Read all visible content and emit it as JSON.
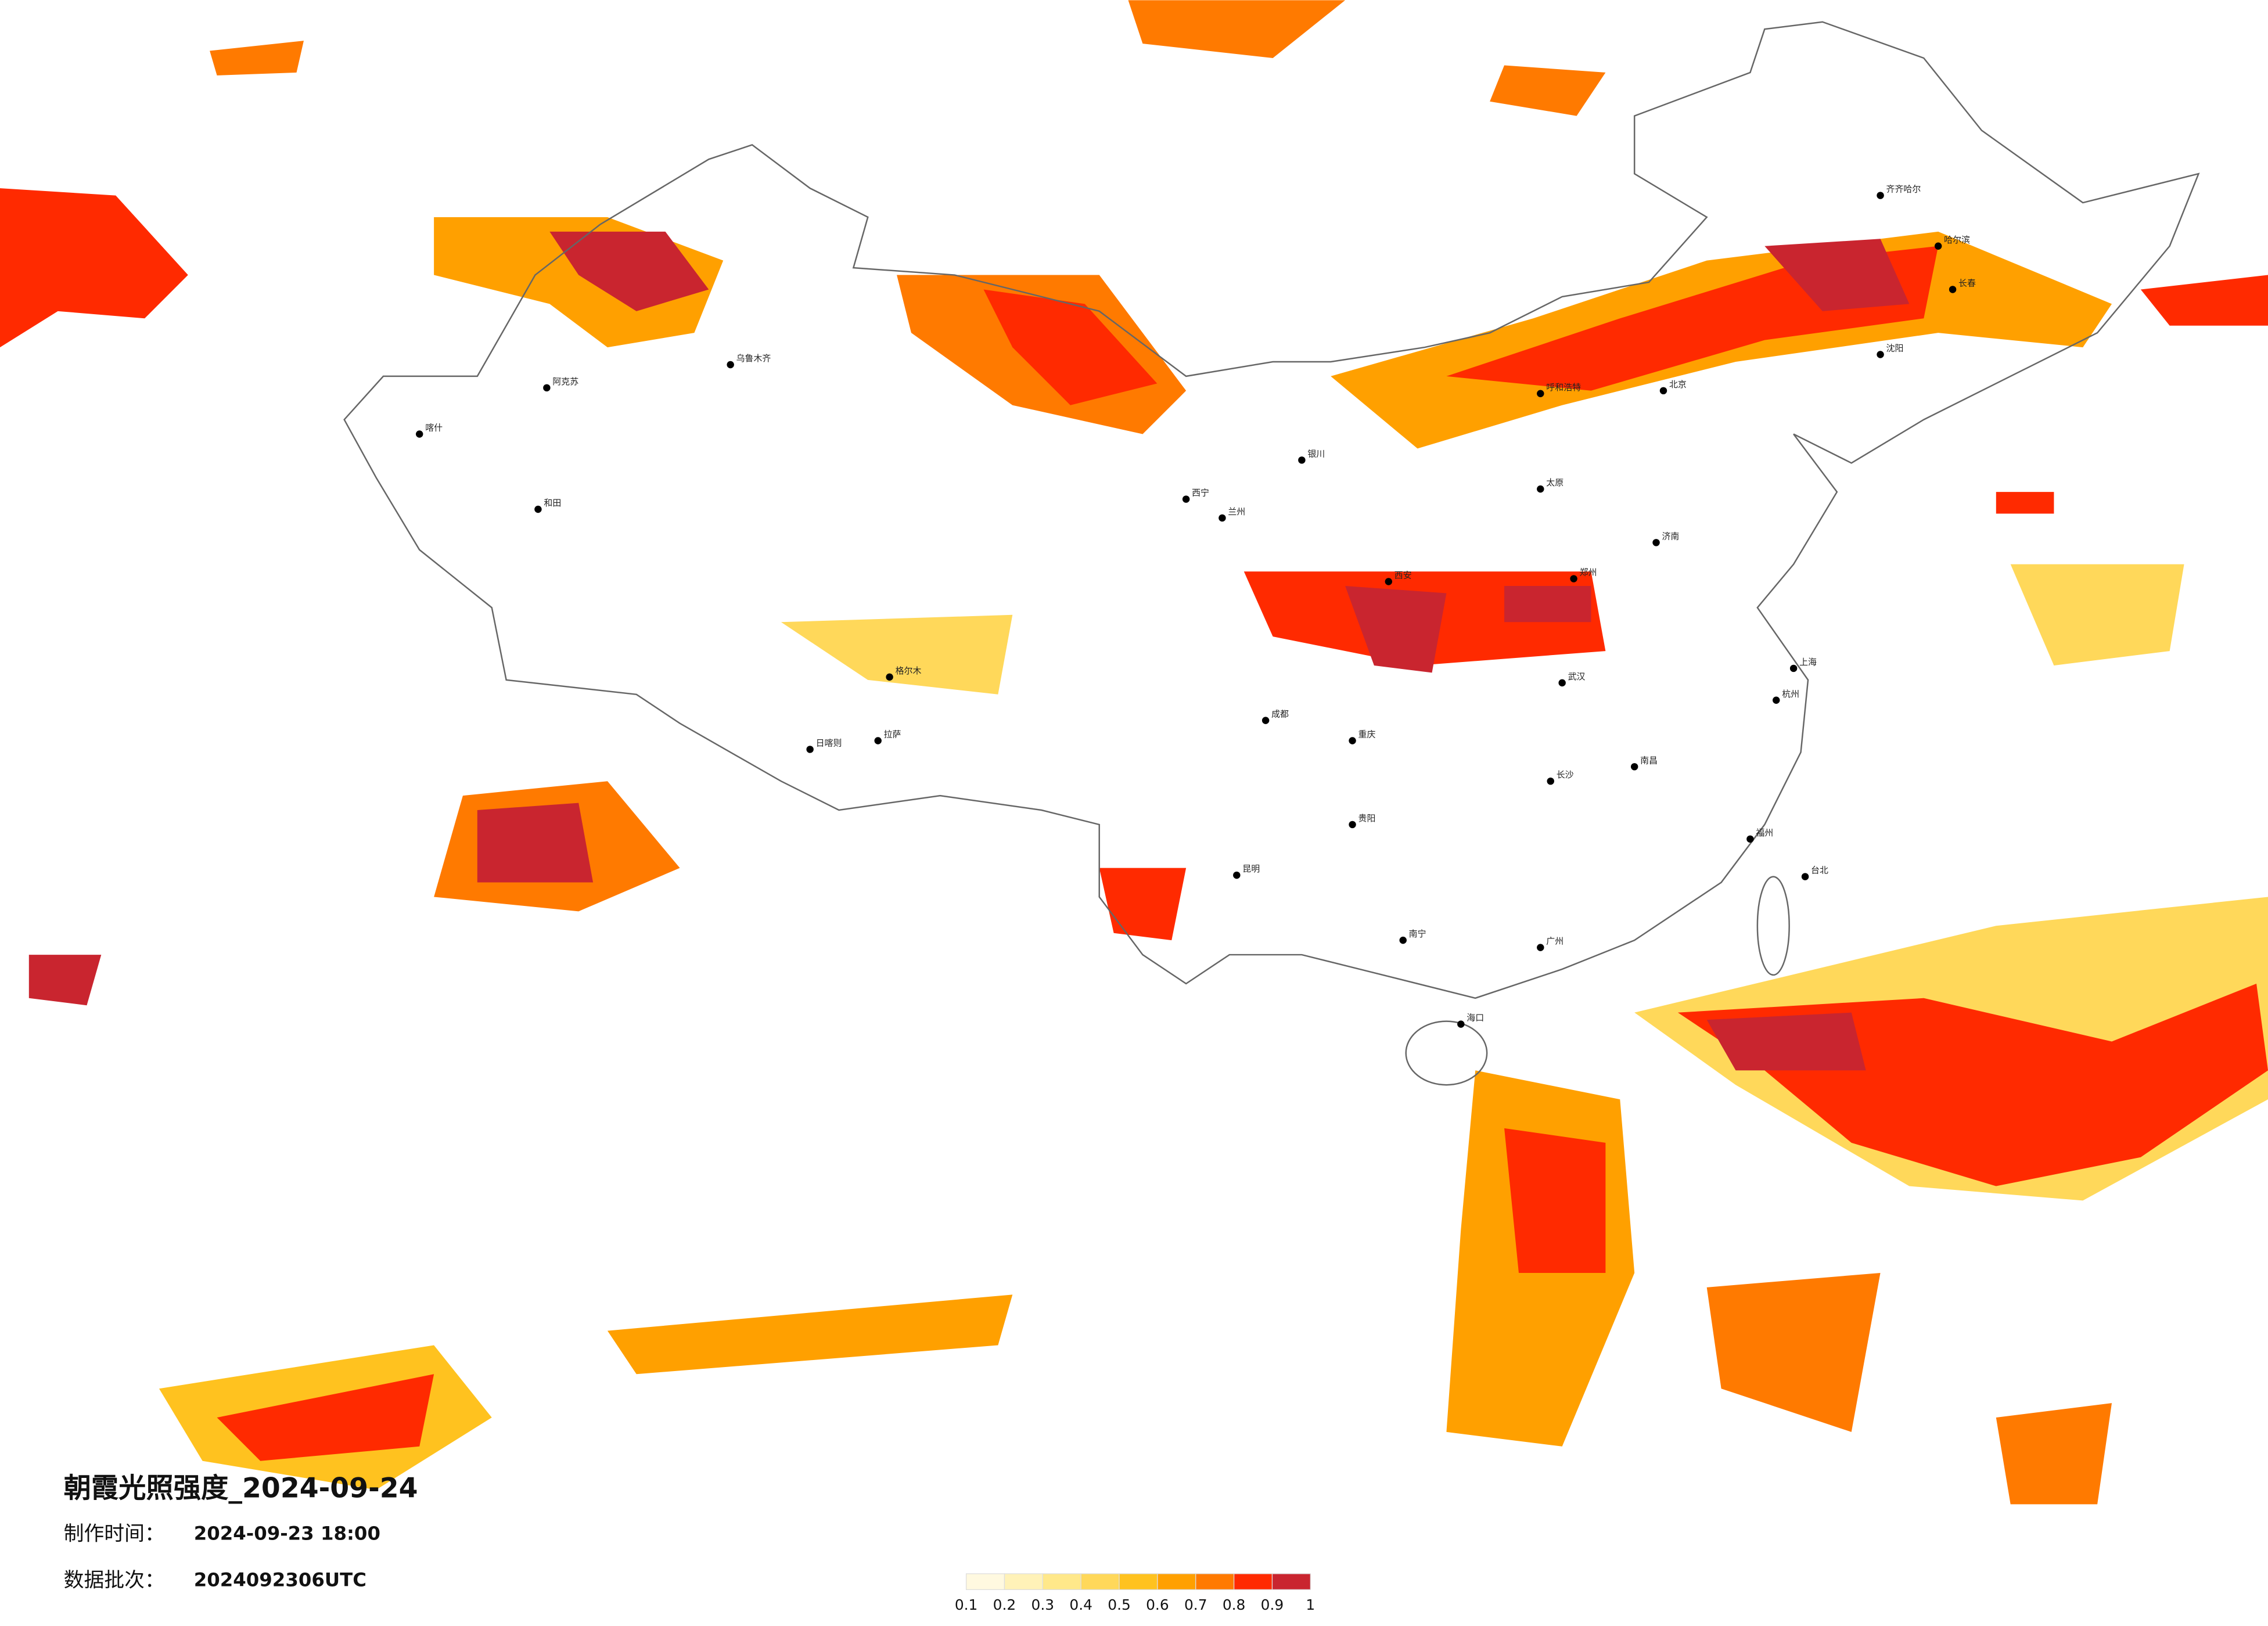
{
  "title": "朝霞光照强度_2024-09-24",
  "info": [
    {
      "label": "制作时间：",
      "value": "2024-09-23 18:00"
    },
    {
      "label": "数据批次：",
      "value": "2024092306UTC"
    }
  ],
  "legend": {
    "colors": [
      "#fff9e0",
      "#fff2b8",
      "#ffe88a",
      "#ffd85a",
      "#ffc21f",
      "#ffa000",
      "#ff7a00",
      "#ff2a00",
      "#c9252f"
    ],
    "ticks": [
      0.1,
      0.2,
      0.3,
      0.4,
      0.5,
      0.6,
      0.7,
      0.8,
      0.9,
      1
    ]
  },
  "cities": [
    "乌鲁木齐",
    "喀什",
    "和田",
    "阿克苏",
    "拉萨",
    "日喀则",
    "格尔木",
    "西宁",
    "兰州",
    "银川",
    "呼和浩特",
    "北京",
    "太原",
    "西安",
    "郑州",
    "武汉",
    "长沙",
    "南昌",
    "上海",
    "杭州",
    "福州",
    "广州",
    "南宁",
    "贵阳",
    "昆明",
    "成都",
    "重庆",
    "海口",
    "台北",
    "哈尔滨",
    "长春",
    "齐齐哈尔",
    "沈阳",
    "济南"
  ]
}
